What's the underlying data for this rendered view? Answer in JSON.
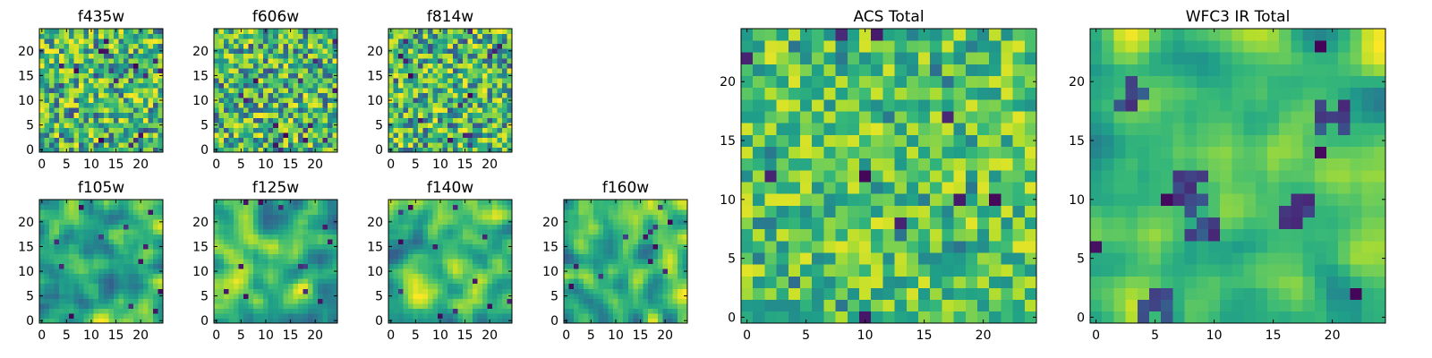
{
  "chart_data": [
    {
      "type": "heatmap",
      "title": "f435w",
      "grid_size": 25,
      "xticks": [
        0,
        5,
        10,
        15,
        20
      ],
      "yticks": [
        0,
        5,
        10,
        15,
        20
      ],
      "xlim": [
        -0.5,
        24.5
      ],
      "ylim": [
        -0.5,
        24.5
      ],
      "origin": "lower",
      "colormap": "viridis",
      "texture": "fine-noise",
      "seed": 11
    },
    {
      "type": "heatmap",
      "title": "f606w",
      "grid_size": 25,
      "xticks": [
        0,
        5,
        10,
        15,
        20
      ],
      "yticks": [
        0,
        5,
        10,
        15,
        20
      ],
      "xlim": [
        -0.5,
        24.5
      ],
      "ylim": [
        -0.5,
        24.5
      ],
      "origin": "lower",
      "colormap": "viridis",
      "texture": "fine-noise",
      "seed": 23
    },
    {
      "type": "heatmap",
      "title": "f814w",
      "grid_size": 25,
      "xticks": [
        0,
        5,
        10,
        15,
        20
      ],
      "yticks": [
        0,
        5,
        10,
        15,
        20
      ],
      "xlim": [
        -0.5,
        24.5
      ],
      "ylim": [
        -0.5,
        24.5
      ],
      "origin": "lower",
      "colormap": "viridis",
      "texture": "fine-noise",
      "seed": 37
    },
    {
      "type": "heatmap",
      "title": "f105w",
      "grid_size": 25,
      "xticks": [
        0,
        5,
        10,
        15,
        20
      ],
      "yticks": [
        0,
        5,
        10,
        15,
        20
      ],
      "xlim": [
        -0.5,
        24.5
      ],
      "ylim": [
        -0.5,
        24.5
      ],
      "origin": "lower",
      "colormap": "viridis",
      "texture": "smooth",
      "seed": 41
    },
    {
      "type": "heatmap",
      "title": "f125w",
      "grid_size": 25,
      "xticks": [
        0,
        5,
        10,
        15,
        20
      ],
      "yticks": [
        0,
        5,
        10,
        15,
        20
      ],
      "xlim": [
        -0.5,
        24.5
      ],
      "ylim": [
        -0.5,
        24.5
      ],
      "origin": "lower",
      "colormap": "viridis",
      "texture": "smooth",
      "seed": 53
    },
    {
      "type": "heatmap",
      "title": "f140w",
      "grid_size": 25,
      "xticks": [
        0,
        5,
        10,
        15,
        20
      ],
      "yticks": [
        0,
        5,
        10,
        15,
        20
      ],
      "xlim": [
        -0.5,
        24.5
      ],
      "ylim": [
        -0.5,
        24.5
      ],
      "origin": "lower",
      "colormap": "viridis",
      "texture": "smooth",
      "seed": 67
    },
    {
      "type": "heatmap",
      "title": "f160w",
      "grid_size": 25,
      "xticks": [
        0,
        5,
        10,
        15,
        20
      ],
      "yticks": [
        0,
        5,
        10,
        15,
        20
      ],
      "xlim": [
        -0.5,
        24.5
      ],
      "ylim": [
        -0.5,
        24.5
      ],
      "origin": "lower",
      "colormap": "viridis",
      "texture": "smooth",
      "seed": 79
    },
    {
      "type": "heatmap",
      "title": "ACS Total",
      "grid_size": 25,
      "xticks": [
        0,
        5,
        10,
        15,
        20
      ],
      "yticks": [
        0,
        5,
        10,
        15,
        20
      ],
      "xlim": [
        -0.5,
        24.5
      ],
      "ylim": [
        -0.5,
        24.5
      ],
      "origin": "lower",
      "colormap": "viridis",
      "texture": "coarse-noise",
      "seed": 97
    },
    {
      "type": "heatmap",
      "title": "WFC3 IR Total",
      "grid_size": 25,
      "xticks": [
        0,
        5,
        10,
        15,
        20
      ],
      "yticks": [
        0,
        5,
        10,
        15,
        20
      ],
      "xlim": [
        -0.5,
        24.5
      ],
      "ylim": [
        -0.5,
        24.5
      ],
      "origin": "lower",
      "colormap": "viridis",
      "texture": "smooth-dark-patches",
      "seed": 113
    }
  ]
}
